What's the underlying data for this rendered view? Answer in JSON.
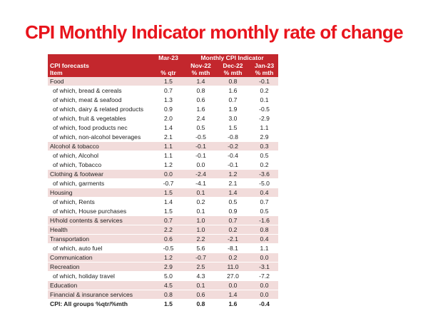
{
  "title": "CPI Monthly Indicator monthly rate of change",
  "table": {
    "header": {
      "row1": [
        "",
        "Mar-23",
        "Monthly CPI Indicator"
      ],
      "row2": [
        "CPI forecasts",
        "",
        "Nov-22",
        "Dec-22",
        "Jan-23"
      ],
      "row3": [
        "Item",
        "% qtr",
        "% mth",
        "% mth",
        "% mth"
      ]
    },
    "rows": [
      {
        "label": "Food",
        "kind": "cat",
        "values": [
          "1.5",
          "1.4",
          "0.8",
          "-0.1"
        ]
      },
      {
        "label": "of which, bread & cereals",
        "kind": "sub",
        "values": [
          "0.7",
          "0.8",
          "1.6",
          "0.2"
        ]
      },
      {
        "label": "of which, meat & seafood",
        "kind": "sub",
        "values": [
          "1.3",
          "0.6",
          "0.7",
          "0.1"
        ]
      },
      {
        "label": "of which, dairy & related products",
        "kind": "sub",
        "values": [
          "0.9",
          "1.6",
          "1.9",
          "-0.5"
        ]
      },
      {
        "label": "of which, fruit & vegetables",
        "kind": "sub",
        "values": [
          "2.0",
          "2.4",
          "3.0",
          "-2.9"
        ]
      },
      {
        "label": "of which, food products nec",
        "kind": "sub",
        "values": [
          "1.4",
          "0.5",
          "1.5",
          "1.1"
        ]
      },
      {
        "label": "of which, non-alcohol beverages",
        "kind": "sub",
        "values": [
          "2.1",
          "-0.5",
          "-0.8",
          "2.9"
        ]
      },
      {
        "label": "Alcohol & tobacco",
        "kind": "cat",
        "values": [
          "1.1",
          "-0.1",
          "-0.2",
          "0.3"
        ]
      },
      {
        "label": "of which, Alcohol",
        "kind": "sub",
        "values": [
          "1.1",
          "-0.1",
          "-0.4",
          "0.5"
        ]
      },
      {
        "label": "of which, Tobacco",
        "kind": "sub",
        "values": [
          "1.2",
          "0.0",
          "-0.1",
          "0.2"
        ]
      },
      {
        "label": "Clothing & footwear",
        "kind": "cat",
        "values": [
          "0.0",
          "-2.4",
          "1.2",
          "-3.6"
        ]
      },
      {
        "label": "of which, garments",
        "kind": "sub",
        "values": [
          "-0.7",
          "-4.1",
          "2.1",
          "-5.0"
        ]
      },
      {
        "label": "Housing",
        "kind": "cat",
        "values": [
          "1.5",
          "0.1",
          "1.4",
          "0.4"
        ]
      },
      {
        "label": "of which, Rents",
        "kind": "sub",
        "values": [
          "1.4",
          "0.2",
          "0.5",
          "0.7"
        ]
      },
      {
        "label": "of which, House purchases",
        "kind": "sub",
        "values": [
          "1.5",
          "0.1",
          "0.9",
          "0.5"
        ]
      },
      {
        "label": "H/hold contents & services",
        "kind": "cat",
        "values": [
          "0.7",
          "1.0",
          "0.7",
          "-1.6"
        ]
      },
      {
        "label": "Health",
        "kind": "cat",
        "values": [
          "2.2",
          "1.0",
          "0.2",
          "0.8"
        ]
      },
      {
        "label": "Transportation",
        "kind": "cat",
        "values": [
          "0.6",
          "2.2",
          "-2.1",
          "0.4"
        ]
      },
      {
        "label": "of which, auto fuel",
        "kind": "sub",
        "values": [
          "-0.5",
          "5.6",
          "-8.1",
          "1.1"
        ]
      },
      {
        "label": "Communication",
        "kind": "cat",
        "values": [
          "1.2",
          "-0.7",
          "0.2",
          "0.0"
        ]
      },
      {
        "label": "Recreation",
        "kind": "cat",
        "values": [
          "2.9",
          "2.5",
          "11.0",
          "-3.1"
        ]
      },
      {
        "label": "of which, holiday travel",
        "kind": "sub",
        "values": [
          "5.0",
          "4.3",
          "27.0",
          "-7.2"
        ]
      },
      {
        "label": "Education",
        "kind": "cat",
        "values": [
          "4.5",
          "0.1",
          "0.0",
          "0.0"
        ]
      },
      {
        "label": "Financial & insurance services",
        "kind": "cat",
        "values": [
          "0.8",
          "0.6",
          "1.4",
          "0.0"
        ]
      },
      {
        "label": "CPI: All groups %qtr/%mth",
        "kind": "total",
        "values": [
          "1.5",
          "0.8",
          "1.6",
          "-0.4"
        ]
      }
    ]
  },
  "colors": {
    "title": "#e8141c",
    "header_bg": "#c3272d",
    "category_row_bg": "#f2dcdb"
  }
}
